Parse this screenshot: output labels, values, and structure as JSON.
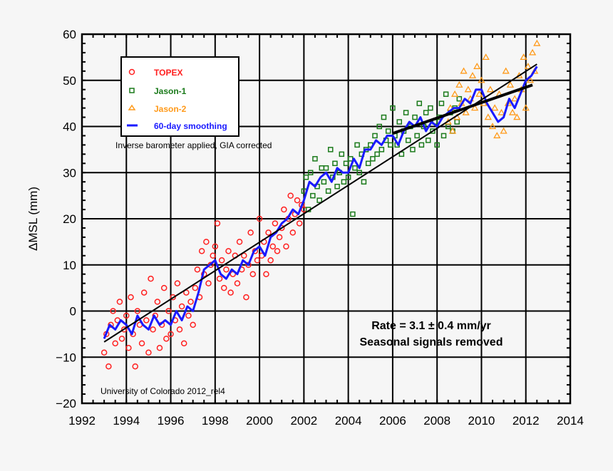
{
  "chart_data": {
    "type": "scatter",
    "ylabel": "ΔMSL (mm)",
    "xlabel": "",
    "xlim": [
      1992,
      2014
    ],
    "ylim": [
      -20,
      60
    ],
    "x_ticks": [
      "1992",
      "1994",
      "1996",
      "1998",
      "2000",
      "2002",
      "2004",
      "2006",
      "2008",
      "2010",
      "2012",
      "2014"
    ],
    "y_ticks": [
      "−20",
      "−10",
      "0",
      "10",
      "20",
      "30",
      "40",
      "50",
      "60"
    ],
    "grid": true,
    "legend_position": "top-left",
    "annotations": {
      "ib": "Inverse barometer applied, GIA corrected",
      "rate": "Rate = 3.1 ± 0.4 mm/yr",
      "seasonal": "Seasonal signals removed",
      "source": "University of Colorado 2012_rel4"
    },
    "series": [
      {
        "name": "TOPEX",
        "marker": "circle",
        "color": "#ff2020",
        "x_start": 1993.0,
        "x_step": 0.1,
        "values": [
          -9,
          -5,
          -12,
          -3,
          0,
          -7,
          -2,
          2,
          -6,
          -4,
          -1,
          -8,
          3,
          -5,
          -12,
          0,
          -3,
          -7,
          4,
          -2,
          -9,
          7,
          -4,
          -1,
          2,
          -8,
          -3,
          5,
          -6,
          0,
          -5,
          3,
          -2,
          6,
          -4,
          1,
          -7,
          4,
          -1,
          2,
          -3,
          5,
          9,
          3,
          13,
          8,
          15,
          6,
          10,
          12,
          14,
          19,
          7,
          11,
          5,
          9,
          13,
          4,
          8,
          12,
          6,
          15,
          9,
          12,
          3,
          10,
          17,
          8,
          13,
          11,
          20,
          12,
          15,
          8,
          17,
          11,
          14,
          19,
          13,
          16,
          18,
          22,
          14,
          20,
          25,
          17,
          21,
          24,
          19,
          23,
          22
        ]
      },
      {
        "name": "Jason-1",
        "marker": "square",
        "color": "#1a7a1a",
        "x_start": 2002.0,
        "x_step": 0.1,
        "values": [
          26,
          29,
          22,
          30,
          25,
          33,
          27,
          24,
          31,
          28,
          31,
          26,
          35,
          29,
          32,
          27,
          30,
          34,
          28,
          32,
          29,
          33,
          21,
          31,
          36,
          30,
          34,
          28,
          35,
          32,
          36,
          33,
          38,
          34,
          40,
          35,
          42,
          37,
          39,
          36,
          44,
          38,
          36,
          41,
          34,
          39,
          43,
          37,
          40,
          35,
          42,
          38,
          45,
          36,
          40,
          43,
          37,
          44,
          39,
          41,
          36,
          42,
          45,
          38,
          47,
          40,
          43,
          39,
          44,
          41,
          46
        ]
      },
      {
        "name": "Jason-2",
        "marker": "triangle",
        "color": "#ff9a1a",
        "x_start": 2008.5,
        "x_step": 0.1,
        "values": [
          41,
          44,
          39,
          47,
          42,
          49,
          45,
          52,
          43,
          48,
          46,
          51,
          44,
          53,
          47,
          50,
          45,
          55,
          42,
          48,
          40,
          44,
          38,
          47,
          43,
          39,
          52,
          45,
          49,
          43,
          46,
          42,
          51,
          48,
          55,
          44,
          53,
          50,
          56,
          52,
          58
        ]
      },
      {
        "name": "60-day smoothing",
        "marker": "line",
        "color": "#1a1aff",
        "x_start": 1993.0,
        "x_step": 0.25,
        "values": [
          -6,
          -3,
          -4,
          -2,
          -3,
          -5,
          -1,
          -3,
          -4,
          -1,
          -3,
          -2,
          -3,
          0,
          -2,
          1,
          0,
          4,
          9,
          10,
          11,
          8,
          7,
          9,
          8,
          11,
          10,
          13,
          14,
          12,
          16,
          17,
          19,
          20,
          22,
          21,
          24,
          28,
          27,
          29,
          30,
          28,
          31,
          30,
          30,
          33,
          31,
          35,
          35,
          37,
          36,
          38,
          38,
          36,
          39,
          41,
          40,
          42,
          39,
          41,
          40,
          42,
          43,
          44,
          44,
          46,
          45,
          48,
          48,
          45,
          43,
          41,
          42,
          46,
          44,
          47,
          50,
          51,
          53
        ]
      }
    ],
    "trend_lines": [
      {
        "points": [
          [
            1993.0,
            -6.7
          ],
          [
            2012.5,
            53.5
          ]
        ],
        "color": "#000000"
      },
      {
        "points": [
          [
            2006.0,
            38.5
          ],
          [
            2012.3,
            49.0
          ]
        ],
        "color": "#000000"
      }
    ]
  }
}
